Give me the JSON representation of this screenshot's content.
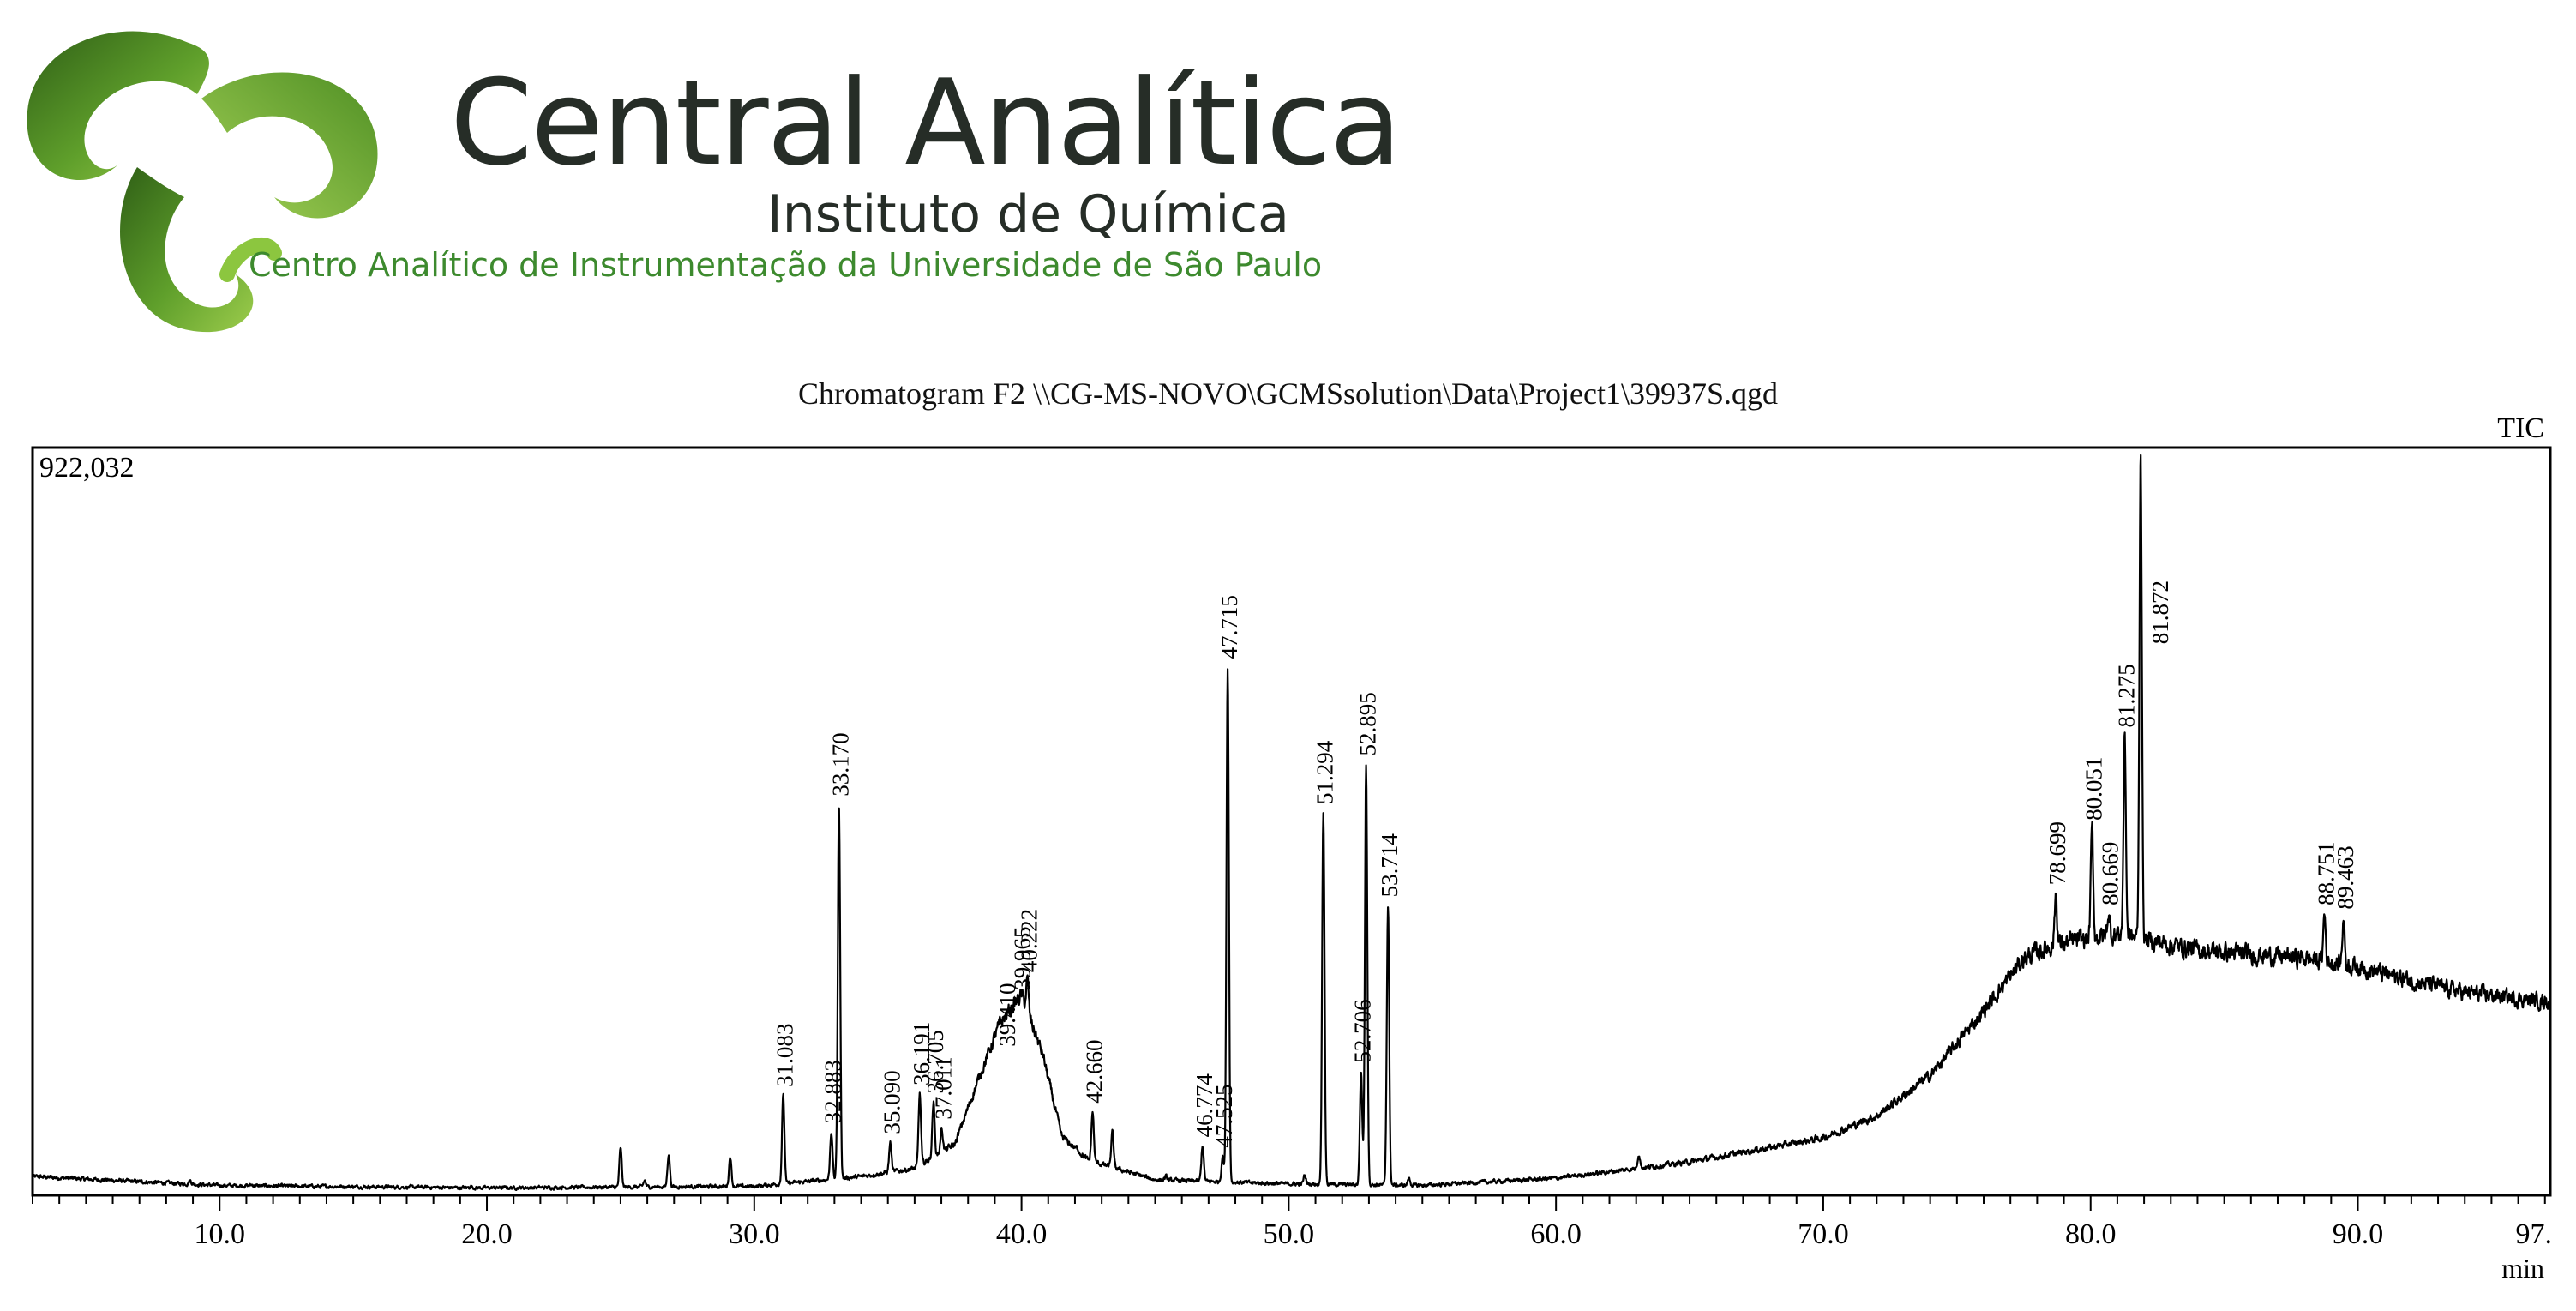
{
  "logo": {
    "title": "Central Analítica",
    "subtitle": "Instituto de Química",
    "tagline": "Centro Analítico de Instrumentação da Universidade de São Paulo",
    "colors": {
      "dark_green": "#3f7a1e",
      "light_green": "#8cc63f",
      "text_dark": "#262d27",
      "tagline_green": "#3d8a2e"
    }
  },
  "chart_data": {
    "type": "line",
    "title": "Chromatogram F2 \\\\CG-MS-NOVO\\GCMSsolution\\Data\\Project1\\39937S.qgd",
    "trace_label": "TIC",
    "y_max_label": "922,032",
    "xlabel": "min",
    "ylabel": "",
    "xlim": [
      3.0,
      97.2
    ],
    "ylim": [
      0,
      922032
    ],
    "x_ticks": [
      10.0,
      20.0,
      30.0,
      40.0,
      50.0,
      60.0,
      70.0,
      80.0,
      90.0,
      97.0
    ],
    "x_tick_labels": [
      "10.0",
      "20.0",
      "30.0",
      "40.0",
      "50.0",
      "60.0",
      "70.0",
      "80.0",
      "90.0",
      "97."
    ],
    "grid": false,
    "line_color": "#000000",
    "peaks": [
      {
        "label": "31.083",
        "x": 31.083,
        "y": 120000
      },
      {
        "label": "32.883",
        "x": 32.883,
        "y": 75000
      },
      {
        "label": "33.170",
        "x": 33.17,
        "y": 480000
      },
      {
        "label": "35.090",
        "x": 35.09,
        "y": 62000
      },
      {
        "label": "36.191",
        "x": 36.191,
        "y": 122000
      },
      {
        "label": "36.705",
        "x": 36.705,
        "y": 112000
      },
      {
        "label": "37.011",
        "x": 37.011,
        "y": 80000
      },
      {
        "label": "39.410",
        "x": 39.41,
        "y": 170000
      },
      {
        "label": "39.965",
        "x": 39.965,
        "y": 240000
      },
      {
        "label": "40.222",
        "x": 40.222,
        "y": 262000
      },
      {
        "label": "42.660",
        "x": 42.66,
        "y": 100000
      },
      {
        "label": "46.774",
        "x": 46.774,
        "y": 58000
      },
      {
        "label": "47.525",
        "x": 47.525,
        "y": 45000
      },
      {
        "label": "47.715",
        "x": 47.715,
        "y": 650000
      },
      {
        "label": "51.294",
        "x": 51.294,
        "y": 470000
      },
      {
        "label": "52.706",
        "x": 52.706,
        "y": 150000
      },
      {
        "label": "52.895",
        "x": 52.895,
        "y": 530000
      },
      {
        "label": "53.714",
        "x": 53.714,
        "y": 355000
      },
      {
        "label": "78.699",
        "x": 78.699,
        "y": 370000
      },
      {
        "label": "80.051",
        "x": 80.051,
        "y": 450000
      },
      {
        "label": "80.669",
        "x": 80.669,
        "y": 345000
      },
      {
        "label": "81.275",
        "x": 81.275,
        "y": 565000
      },
      {
        "label": "81.872",
        "x": 81.872,
        "y": 922032
      },
      {
        "label": "88.751",
        "x": 88.751,
        "y": 345000
      },
      {
        "label": "89.463",
        "x": 89.463,
        "y": 340000
      }
    ],
    "minor_peaks": [
      {
        "x": 8.9,
        "y": 15000
      },
      {
        "x": 11.2,
        "y": 10000
      },
      {
        "x": 19.4,
        "y": 8000
      },
      {
        "x": 25.0,
        "y": 55000
      },
      {
        "x": 25.9,
        "y": 15000
      },
      {
        "x": 26.8,
        "y": 48000
      },
      {
        "x": 29.1,
        "y": 45000
      },
      {
        "x": 34.4,
        "y": 22000
      },
      {
        "x": 42.1,
        "y": 55000
      },
      {
        "x": 43.4,
        "y": 75000
      },
      {
        "x": 44.1,
        "y": 25000
      },
      {
        "x": 45.4,
        "y": 20000
      },
      {
        "x": 50.6,
        "y": 22000
      },
      {
        "x": 54.5,
        "y": 18000
      },
      {
        "x": 62.7,
        "y": 25000
      },
      {
        "x": 63.1,
        "y": 48000
      },
      {
        "x": 72.2,
        "y": 35000
      },
      {
        "x": 75.2,
        "y": 40000
      },
      {
        "x": 83.6,
        "y": 20000
      },
      {
        "x": 86.0,
        "y": 18000
      }
    ],
    "baseline": [
      [
        3.0,
        20000
      ],
      [
        10.0,
        9000
      ],
      [
        20.0,
        6000
      ],
      [
        30.0,
        8000
      ],
      [
        34.0,
        20000
      ],
      [
        36.0,
        30000
      ],
      [
        37.5,
        60000
      ],
      [
        38.5,
        150000
      ],
      [
        39.2,
        210000
      ],
      [
        40.0,
        245000
      ],
      [
        40.8,
        170000
      ],
      [
        41.5,
        70000
      ],
      [
        42.5,
        40000
      ],
      [
        45.0,
        16000
      ],
      [
        50.0,
        11000
      ],
      [
        55.0,
        9000
      ],
      [
        60.0,
        18000
      ],
      [
        65.0,
        38000
      ],
      [
        70.0,
        68000
      ],
      [
        72.0,
        95000
      ],
      [
        74.0,
        145000
      ],
      [
        76.0,
        225000
      ],
      [
        77.5,
        290000
      ],
      [
        78.5,
        305000
      ],
      [
        80.0,
        315000
      ],
      [
        81.0,
        320000
      ],
      [
        82.5,
        310000
      ],
      [
        84.0,
        300000
      ],
      [
        86.0,
        295000
      ],
      [
        88.0,
        290000
      ],
      [
        90.0,
        280000
      ],
      [
        92.0,
        262000
      ],
      [
        94.0,
        248000
      ],
      [
        96.0,
        240000
      ],
      [
        97.2,
        236000
      ]
    ]
  }
}
